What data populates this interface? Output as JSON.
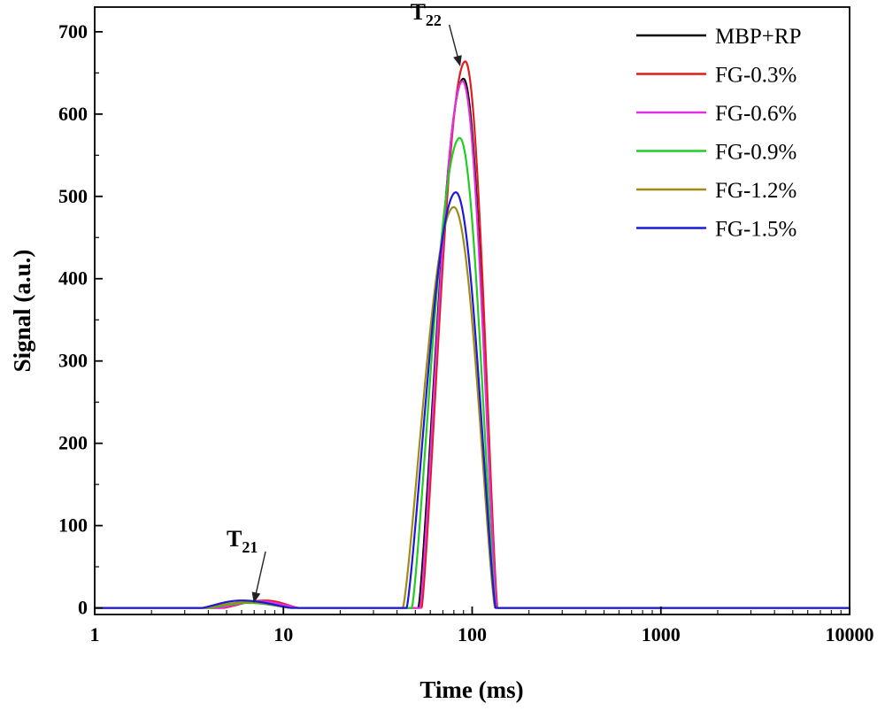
{
  "chart_data": {
    "type": "line",
    "xlabel": "Time (ms)",
    "ylabel": "Signal (a.u.)",
    "xscale": "log",
    "xlim": [
      1,
      10000
    ],
    "ylim": [
      -8,
      730
    ],
    "x_ticks": [
      1,
      10,
      100,
      1000,
      10000
    ],
    "x_tick_labels": [
      "1",
      "10",
      "100",
      "1000",
      "10000"
    ],
    "y_ticks": [
      0,
      100,
      200,
      300,
      400,
      500,
      600,
      700
    ],
    "y_tick_labels": [
      "0",
      "100",
      "200",
      "300",
      "400",
      "500",
      "600",
      "700"
    ],
    "grid": false,
    "legend_position": "top-right",
    "series": [
      {
        "name": "MBP+RP",
        "color": "#000000",
        "t21": {
          "start": 4.6,
          "peak": 7.5,
          "end": 12,
          "amp": 8
        },
        "t22": {
          "start": 52,
          "peak": 90,
          "end": 135,
          "amp": 643
        }
      },
      {
        "name": "FG-0.3%",
        "color": "#e41a1c",
        "t21": {
          "start": 4.8,
          "peak": 8,
          "end": 12,
          "amp": 9
        },
        "t22": {
          "start": 54,
          "peak": 92,
          "end": 136,
          "amp": 664
        }
      },
      {
        "name": "FG-0.6%",
        "color": "#e030e0",
        "t21": {
          "start": 4.6,
          "peak": 7.5,
          "end": 12,
          "amp": 8
        },
        "t22": {
          "start": 53,
          "peak": 89,
          "end": 135,
          "amp": 640
        }
      },
      {
        "name": "FG-0.9%",
        "color": "#22cc22",
        "t21": {
          "start": 4.0,
          "peak": 6.5,
          "end": 11,
          "amp": 6
        },
        "t22": {
          "start": 48,
          "peak": 86,
          "end": 133,
          "amp": 571
        }
      },
      {
        "name": "FG-1.2%",
        "color": "#a38a10",
        "t21": {
          "start": 3.8,
          "peak": 6.5,
          "end": 11,
          "amp": 7
        },
        "t22": {
          "start": 43,
          "peak": 80,
          "end": 132,
          "amp": 487
        }
      },
      {
        "name": "FG-1.5%",
        "color": "#1a1ad8",
        "t21": {
          "start": 3.7,
          "peak": 6.0,
          "end": 11,
          "amp": 9
        },
        "t22": {
          "start": 45,
          "peak": 82,
          "end": 133,
          "amp": 505
        }
      }
    ],
    "annotations": [
      {
        "label": "T",
        "sub": "21",
        "x": 5.0,
        "y": 75,
        "arrow_to": {
          "x": 7.0,
          "y": 8
        }
      },
      {
        "label": "T",
        "sub": "22",
        "x": 47,
        "y": 715,
        "arrow_to": {
          "x": 86,
          "y": 660
        }
      }
    ]
  }
}
